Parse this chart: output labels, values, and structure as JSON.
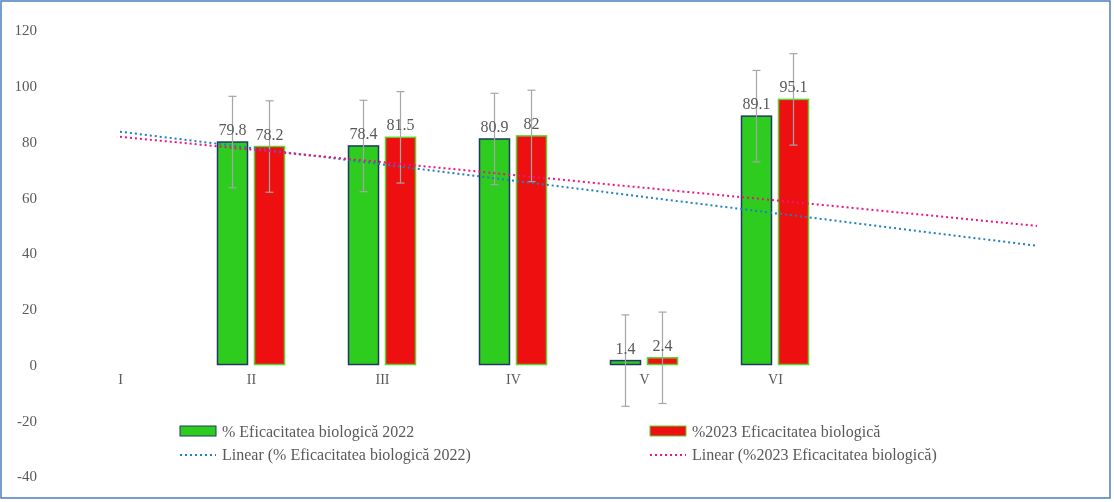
{
  "chart_data": {
    "type": "bar",
    "categories": [
      "I",
      "II",
      "III",
      "IV",
      "V",
      "VI",
      null,
      null
    ],
    "series": [
      {
        "name": "% Eficacitatea biologică 2022",
        "color": "#2ecc1e",
        "values": [
          null,
          79.8,
          78.4,
          80.9,
          1.4,
          89.1,
          null,
          null
        ],
        "value_labels": [
          null,
          "79.8",
          "78.4",
          "80.9",
          "1.4",
          "89.1",
          null,
          null
        ],
        "errors": [
          null,
          16.4,
          16.4,
          16.4,
          16.4,
          16.4,
          null,
          null
        ]
      },
      {
        "name": "%2023 Eficacitatea biologică",
        "color": "#ee1010",
        "values": [
          null,
          78.2,
          81.5,
          82,
          2.4,
          95.1,
          null,
          null
        ],
        "value_labels": [
          null,
          "78.2",
          "81.5",
          "82",
          "2.4",
          "95.1",
          null,
          null
        ],
        "errors": [
          null,
          16.4,
          16.4,
          16.4,
          16.4,
          16.4,
          null,
          null
        ]
      },
      {
        "name": "Linear (% Eficacitatea biologică 2022)",
        "type": "line",
        "color": "#1f7fc4",
        "line_style": "dotted",
        "values": [
          83.5,
          77.7,
          71.8,
          66.0,
          60.1,
          54.3,
          48.4,
          42.6
        ]
      },
      {
        "name": "Linear (%2023 Eficacitatea biologică)",
        "type": "line",
        "color": "#f0137d",
        "line_style": "dotted",
        "values": [
          81.7,
          77.1,
          72.6,
          68.0,
          63.4,
          58.9,
          54.3,
          49.7
        ]
      }
    ],
    "ylim": [
      -40,
      120
    ],
    "yticks": [
      -40,
      -20,
      0,
      20,
      40,
      60,
      80,
      100,
      120
    ],
    "grid": false,
    "legend": "bottom"
  }
}
